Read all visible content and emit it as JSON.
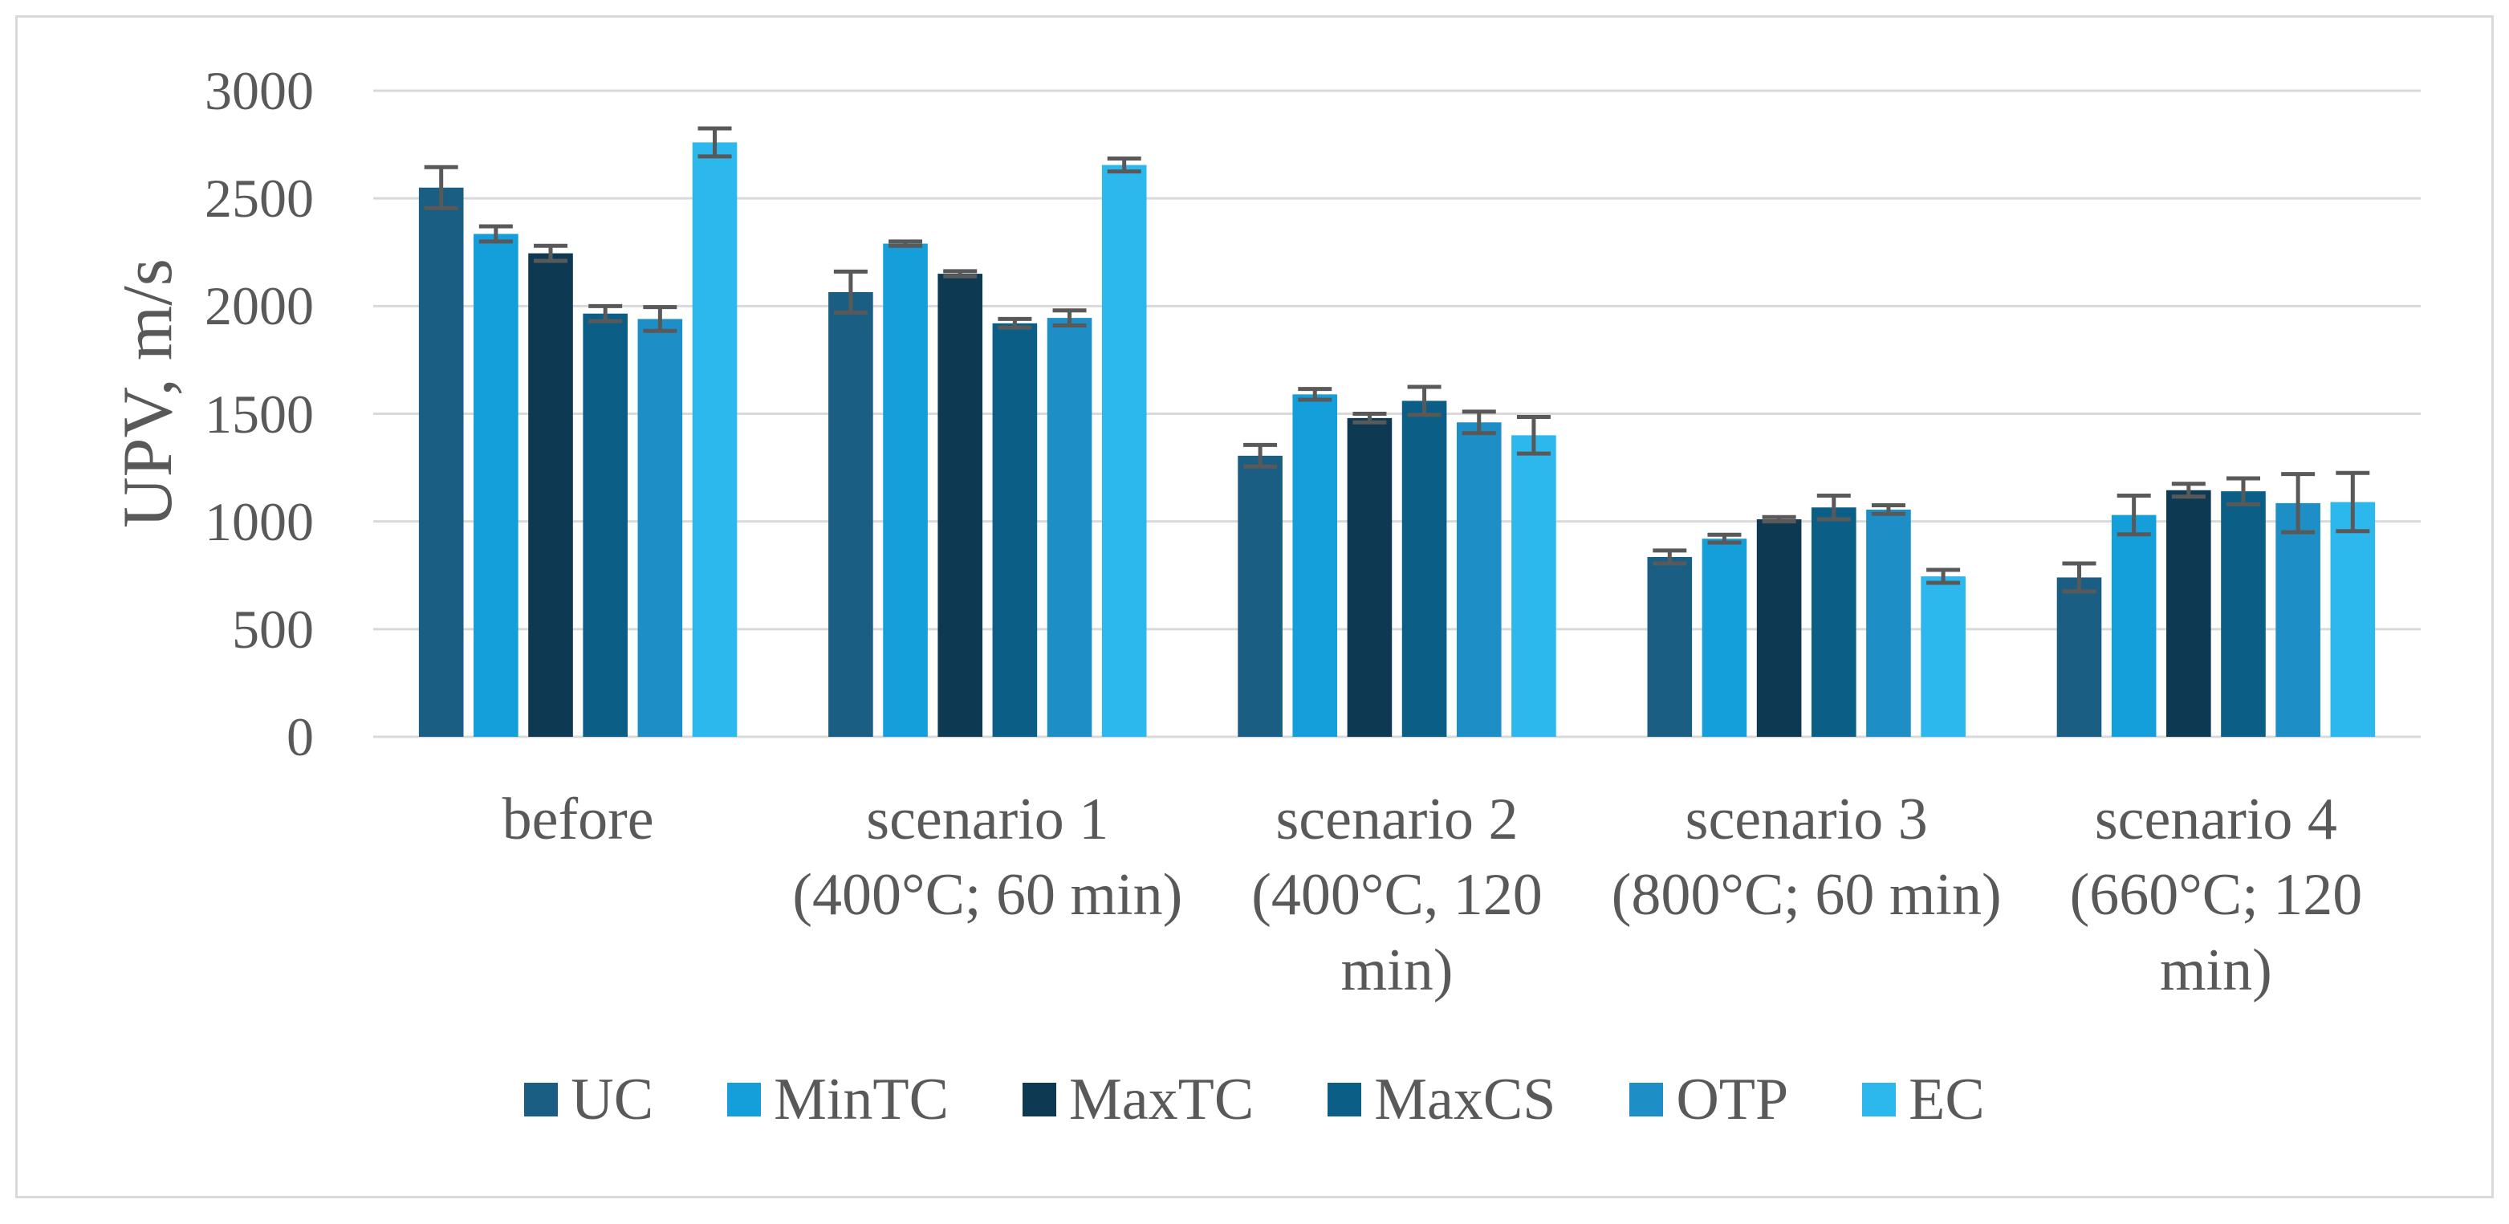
{
  "chart_data": {
    "type": "bar",
    "categories": [
      "before",
      "scenario 1 (400°C; 60 min)",
      "scenario 2 (400°C, 120 min)",
      "scenario 3 (800°C; 60 min)",
      "scenario 4 (660°C; 120 min)"
    ],
    "series": [
      {
        "name": "UC",
        "color": "#1b5e84",
        "values": [
          2550,
          2065,
          1305,
          835,
          740
        ],
        "errors": [
          95,
          95,
          50,
          30,
          65
        ]
      },
      {
        "name": "MinTC",
        "color": "#159fda",
        "values": [
          2335,
          2290,
          1590,
          920,
          1030
        ],
        "errors": [
          35,
          10,
          25,
          18,
          90
        ]
      },
      {
        "name": "MaxTC",
        "color": "#0d3a52",
        "values": [
          2245,
          2150,
          1480,
          1010,
          1145
        ],
        "errors": [
          35,
          12,
          20,
          10,
          30
        ]
      },
      {
        "name": "MaxCS",
        "color": "#0b5f86",
        "values": [
          1965,
          1920,
          1560,
          1065,
          1140
        ],
        "errors": [
          35,
          20,
          65,
          55,
          60
        ]
      },
      {
        "name": "OTP",
        "color": "#1d8fc6",
        "values": [
          1940,
          1945,
          1460,
          1055,
          1085
        ],
        "errors": [
          55,
          35,
          50,
          20,
          135
        ]
      },
      {
        "name": "EC",
        "color": "#2cb8ec",
        "values": [
          2760,
          2655,
          1400,
          745,
          1090
        ],
        "errors": [
          65,
          30,
          85,
          30,
          135
        ]
      }
    ],
    "ylabel": "UPV, m/s",
    "ylim": [
      0,
      3000
    ],
    "yticks": [
      0,
      500,
      1000,
      1500,
      2000,
      2500,
      3000
    ],
    "grid": true,
    "legend": "bottom",
    "error_bar_color": "#595959",
    "gridline_color": "#d9d9d9"
  }
}
